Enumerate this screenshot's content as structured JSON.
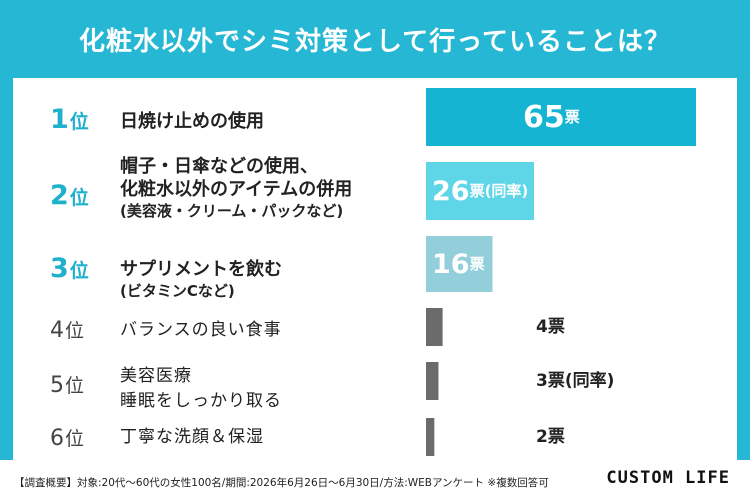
{
  "colors": {
    "background": "#25b7d3",
    "panel": "#ffffff",
    "rank1_bar": "#15b4d2",
    "rank2_bar": "#5fd6e8",
    "rank3_bar": "#93cfdb",
    "other_bar": "#6b6b6b",
    "rank_text": "#1fb0cc"
  },
  "chart_data": {
    "type": "bar",
    "title": "化粧水以外でシミ対策として行っていることは？",
    "categories": [
      "日焼け止めの使用",
      "帽子・日傘などの使用、化粧水以外のアイテムの併用(美容液・クリーム・パックなど)",
      "サプリメントを飲む(ビタミンCなど)",
      "バランスの良い食事",
      "美容医療 睡眠をしっかり取る",
      "丁寧な洗顔＆保湿"
    ],
    "values": [
      65,
      26,
      16,
      4,
      3,
      2
    ],
    "xlim": [
      0,
      65
    ]
  },
  "rows": [
    {
      "rank": "1",
      "suffix": "位",
      "lines": [
        "日焼け止めの使用"
      ],
      "value_num": "65",
      "value_unit": "票",
      "value_note": ""
    },
    {
      "rank": "2",
      "suffix": "位",
      "lines": [
        "帽子・日傘などの使用、",
        "化粧水以外のアイテムの併用",
        "(美容液・クリーム・パックなど)"
      ],
      "value_num": "26",
      "value_unit": "票",
      "value_note": "(同率)"
    },
    {
      "rank": "3",
      "suffix": "位",
      "lines": [
        "サプリメントを飲む",
        "(ビタミンCなど)"
      ],
      "value_num": "16",
      "value_unit": "票",
      "value_note": ""
    },
    {
      "rank": "4",
      "suffix": "位",
      "lines": [
        "バランスの良い食事"
      ],
      "value_num": "4",
      "value_unit": "票",
      "value_note": ""
    },
    {
      "rank": "5",
      "suffix": "位",
      "lines": [
        "美容医療",
        "睡眠をしっかり取る"
      ],
      "value_num": "3",
      "value_unit": "票",
      "value_note": "(同率)"
    },
    {
      "rank": "6",
      "suffix": "位",
      "lines": [
        "丁寧な洗顔＆保湿"
      ],
      "value_num": "2",
      "value_unit": "票",
      "value_note": ""
    }
  ],
  "footer": {
    "note": "【調査概要】対象:20代〜60代の女性100名/期間:2026年6月26日〜6月30日/方法:WEBアンケート ※複数回答可",
    "logo": "CUSTOM LIFE"
  }
}
